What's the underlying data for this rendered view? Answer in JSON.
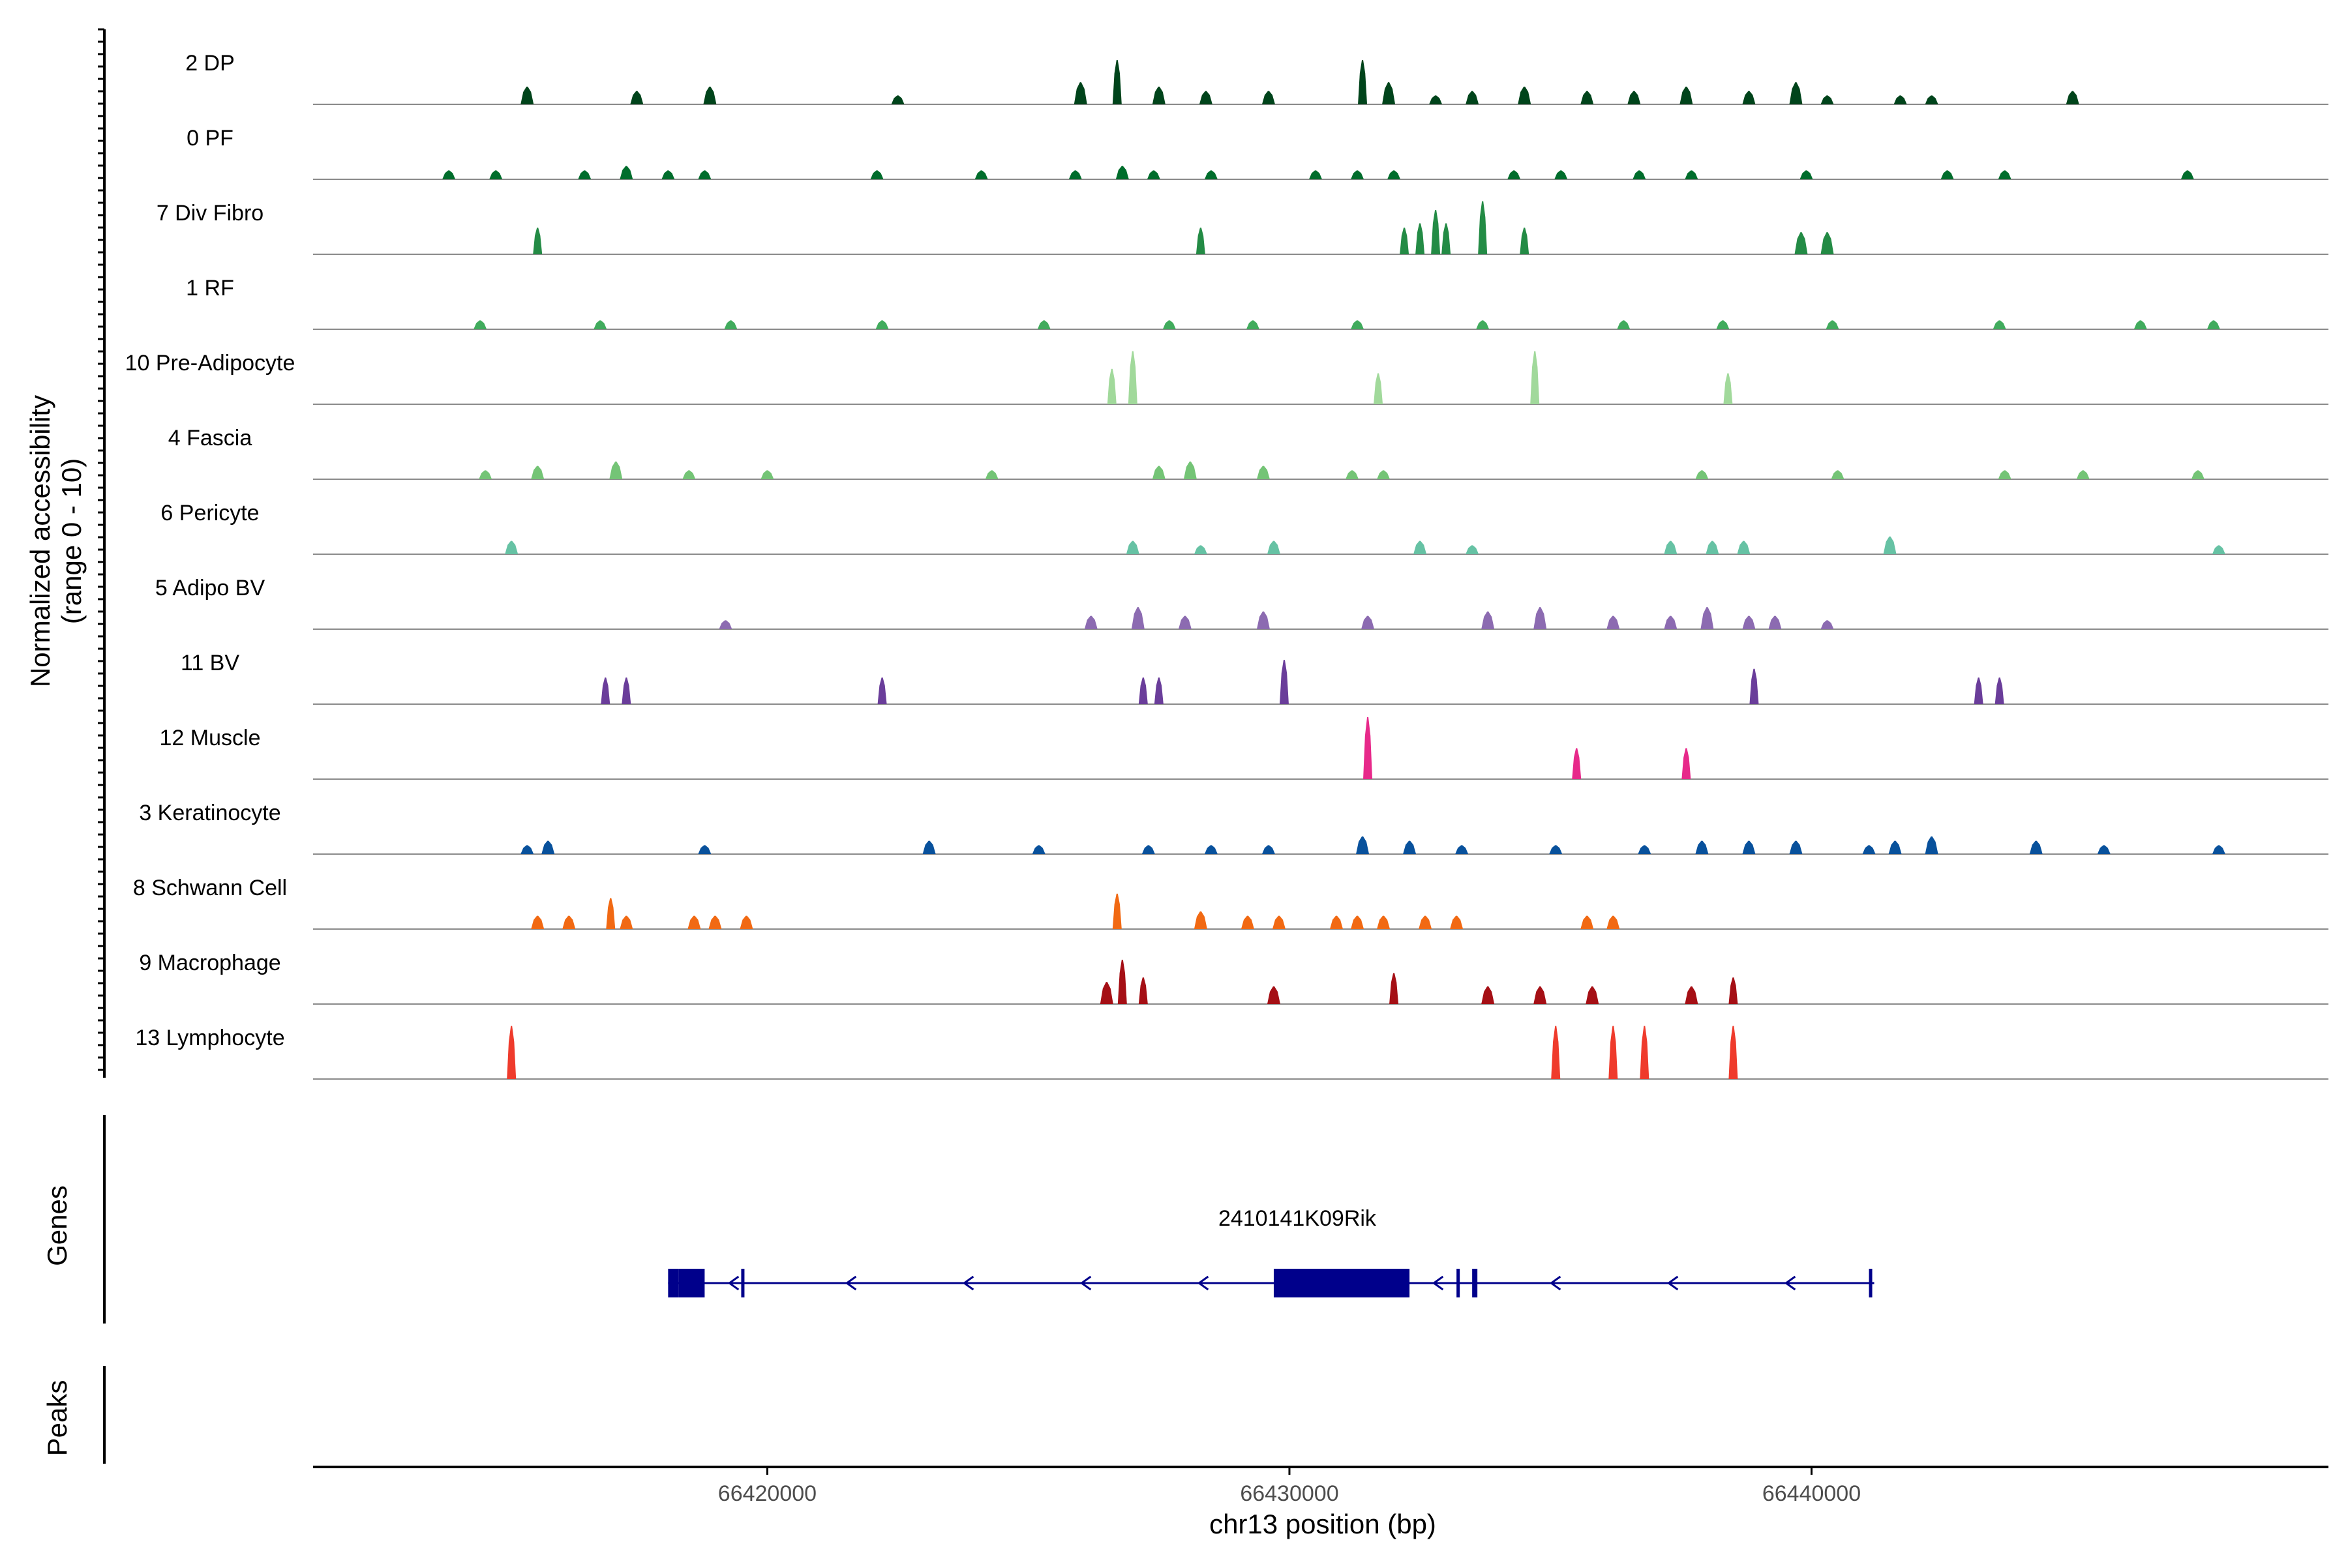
{
  "chart_data": {
    "type": "area",
    "title": "",
    "y_axis_title": [
      "Normalized accessibility",
      "(range 0 - 10)"
    ],
    "ylim": [
      0,
      10
    ],
    "x_axis_title": "chr13 position (bp)",
    "xlim": [
      66411300,
      66449900
    ],
    "x_ticks": [
      66420000,
      66430000,
      66440000
    ],
    "x_tick_labels": [
      "66420000",
      "66430000",
      "66440000"
    ],
    "genes_track_label": "Genes",
    "peaks_track_label": "Peaks",
    "tracks": [
      {
        "name": "2 DP",
        "color": "#00441b",
        "peaks": [
          [
            66415400,
            4
          ],
          [
            66417500,
            3
          ],
          [
            66418900,
            4
          ],
          [
            66422500,
            2
          ],
          [
            66426000,
            5
          ],
          [
            66426700,
            10
          ],
          [
            66427500,
            4
          ],
          [
            66428400,
            3
          ],
          [
            66429600,
            3
          ],
          [
            66431400,
            10
          ],
          [
            66431900,
            5
          ],
          [
            66432800,
            2
          ],
          [
            66433500,
            3
          ],
          [
            66434500,
            4
          ],
          [
            66435700,
            3
          ],
          [
            66436600,
            3
          ],
          [
            66437600,
            4
          ],
          [
            66438800,
            3
          ],
          [
            66439700,
            5
          ],
          [
            66440300,
            2
          ],
          [
            66441700,
            2
          ],
          [
            66442300,
            2
          ],
          [
            66445000,
            3
          ]
        ]
      },
      {
        "name": "0 PF",
        "color": "#006d2c",
        "peaks": [
          [
            66413900,
            2
          ],
          [
            66414800,
            2
          ],
          [
            66416500,
            2
          ],
          [
            66417300,
            3
          ],
          [
            66418100,
            2
          ],
          [
            66418800,
            2
          ],
          [
            66422100,
            2
          ],
          [
            66424100,
            2
          ],
          [
            66425900,
            2
          ],
          [
            66426800,
            3
          ],
          [
            66427400,
            2
          ],
          [
            66428500,
            2
          ],
          [
            66430500,
            2
          ],
          [
            66431300,
            2
          ],
          [
            66432000,
            2
          ],
          [
            66434300,
            2
          ],
          [
            66435200,
            2
          ],
          [
            66436700,
            2
          ],
          [
            66437700,
            2
          ],
          [
            66439900,
            2
          ],
          [
            66442600,
            2
          ],
          [
            66443700,
            2
          ],
          [
            66447200,
            2
          ]
        ]
      },
      {
        "name": "7 Div Fibro",
        "color": "#238b45",
        "peaks": [
          [
            66415600,
            6
          ],
          [
            66428300,
            6
          ],
          [
            66432200,
            6
          ],
          [
            66432500,
            7
          ],
          [
            66432800,
            10
          ],
          [
            66433000,
            7
          ],
          [
            66433700,
            12
          ],
          [
            66434500,
            6
          ],
          [
            66439800,
            5
          ],
          [
            66440300,
            5
          ]
        ]
      },
      {
        "name": "1 RF",
        "color": "#41ab5d",
        "peaks": [
          [
            66414500,
            2
          ],
          [
            66416800,
            2
          ],
          [
            66419300,
            2
          ],
          [
            66422200,
            2
          ],
          [
            66425300,
            2
          ],
          [
            66427700,
            2
          ],
          [
            66429300,
            2
          ],
          [
            66431300,
            2
          ],
          [
            66433700,
            2
          ],
          [
            66436400,
            2
          ],
          [
            66438300,
            2
          ],
          [
            66440400,
            2
          ],
          [
            66443600,
            2
          ],
          [
            66446300,
            2
          ],
          [
            66447700,
            2
          ]
        ]
      },
      {
        "name": "10 Pre-Adipocyte",
        "color": "#a1d99b",
        "peaks": [
          [
            66426600,
            8
          ],
          [
            66427000,
            12
          ],
          [
            66431700,
            7
          ],
          [
            66434700,
            12
          ],
          [
            66438400,
            7
          ]
        ]
      },
      {
        "name": "4 Fascia",
        "color": "#74c476",
        "peaks": [
          [
            66414600,
            2
          ],
          [
            66415600,
            3
          ],
          [
            66417100,
            4
          ],
          [
            66418500,
            2
          ],
          [
            66420000,
            2
          ],
          [
            66424300,
            2
          ],
          [
            66427500,
            3
          ],
          [
            66428100,
            4
          ],
          [
            66429500,
            3
          ],
          [
            66431200,
            2
          ],
          [
            66431800,
            2
          ],
          [
            66437900,
            2
          ],
          [
            66440500,
            2
          ],
          [
            66443700,
            2
          ],
          [
            66445200,
            2
          ],
          [
            66447400,
            2
          ]
        ]
      },
      {
        "name": "6 Pericyte",
        "color": "#66c2a4",
        "peaks": [
          [
            66415100,
            3
          ],
          [
            66427000,
            3
          ],
          [
            66428300,
            2
          ],
          [
            66429700,
            3
          ],
          [
            66432500,
            3
          ],
          [
            66433500,
            2
          ],
          [
            66437300,
            3
          ],
          [
            66438100,
            3
          ],
          [
            66438700,
            3
          ],
          [
            66441500,
            4
          ],
          [
            66447800,
            2
          ]
        ]
      },
      {
        "name": "5 Adipo BV",
        "color": "#8c6bb1",
        "peaks": [
          [
            66419200,
            2
          ],
          [
            66426200,
            3
          ],
          [
            66427100,
            5
          ],
          [
            66428000,
            3
          ],
          [
            66429500,
            4
          ],
          [
            66431500,
            3
          ],
          [
            66433800,
            4
          ],
          [
            66434800,
            5
          ],
          [
            66436200,
            3
          ],
          [
            66437300,
            3
          ],
          [
            66438000,
            5
          ],
          [
            66438800,
            3
          ],
          [
            66439300,
            3
          ],
          [
            66440300,
            2
          ]
        ]
      },
      {
        "name": "11 BV",
        "color": "#6a3d9a",
        "peaks": [
          [
            66416900,
            6
          ],
          [
            66417300,
            6
          ],
          [
            66422200,
            6
          ],
          [
            66427200,
            6
          ],
          [
            66427500,
            6
          ],
          [
            66429900,
            10
          ],
          [
            66438900,
            8
          ],
          [
            66443200,
            6
          ],
          [
            66443600,
            6
          ]
        ]
      },
      {
        "name": "12 Muscle",
        "color": "#e7298a",
        "peaks": [
          [
            66431500,
            14
          ],
          [
            66435500,
            7
          ],
          [
            66437600,
            7
          ]
        ]
      },
      {
        "name": "3 Keratinocyte",
        "color": "#08519c",
        "peaks": [
          [
            66415400,
            2
          ],
          [
            66415800,
            3
          ],
          [
            66418800,
            2
          ],
          [
            66423100,
            3
          ],
          [
            66425200,
            2
          ],
          [
            66427300,
            2
          ],
          [
            66428500,
            2
          ],
          [
            66429600,
            2
          ],
          [
            66431400,
            4
          ],
          [
            66432300,
            3
          ],
          [
            66433300,
            2
          ],
          [
            66435100,
            2
          ],
          [
            66436800,
            2
          ],
          [
            66437900,
            3
          ],
          [
            66438800,
            3
          ],
          [
            66439700,
            3
          ],
          [
            66441100,
            2
          ],
          [
            66441600,
            3
          ],
          [
            66442300,
            4
          ],
          [
            66444300,
            3
          ],
          [
            66445600,
            2
          ],
          [
            66447800,
            2
          ]
        ]
      },
      {
        "name": "8 Schwann Cell",
        "color": "#f16913",
        "peaks": [
          [
            66415600,
            3
          ],
          [
            66416200,
            3
          ],
          [
            66417000,
            7
          ],
          [
            66417300,
            3
          ],
          [
            66418600,
            3
          ],
          [
            66419000,
            3
          ],
          [
            66419600,
            3
          ],
          [
            66426700,
            8
          ],
          [
            66428300,
            4
          ],
          [
            66429200,
            3
          ],
          [
            66429800,
            3
          ],
          [
            66430900,
            3
          ],
          [
            66431300,
            3
          ],
          [
            66431800,
            3
          ],
          [
            66432600,
            3
          ],
          [
            66433200,
            3
          ],
          [
            66435700,
            3
          ],
          [
            66436200,
            3
          ]
        ]
      },
      {
        "name": "9 Macrophage",
        "color": "#a50f15",
        "peaks": [
          [
            66426500,
            5
          ],
          [
            66426800,
            10
          ],
          [
            66427200,
            6
          ],
          [
            66429700,
            4
          ],
          [
            66432000,
            7
          ],
          [
            66433800,
            4
          ],
          [
            66434800,
            4
          ],
          [
            66435800,
            4
          ],
          [
            66437700,
            4
          ],
          [
            66438500,
            6
          ]
        ]
      },
      {
        "name": "13 Lymphocyte",
        "color": "#ef3b2c",
        "peaks": [
          [
            66415100,
            12
          ],
          [
            66435100,
            12
          ],
          [
            66436200,
            12
          ],
          [
            66436800,
            12
          ],
          [
            66438500,
            12
          ]
        ]
      }
    ],
    "gene": {
      "name": "2410141K09Rik",
      "strand": "-",
      "start": 66418100,
      "end": 66441200,
      "exons": [
        [
          66418100,
          66418300
        ],
        [
          66418300,
          66418800
        ],
        [
          66419500,
          66419530
        ],
        [
          66429700,
          66432300
        ],
        [
          66433200,
          66433250
        ],
        [
          66433500,
          66433600
        ],
        [
          66441100,
          66441150
        ]
      ]
    }
  }
}
